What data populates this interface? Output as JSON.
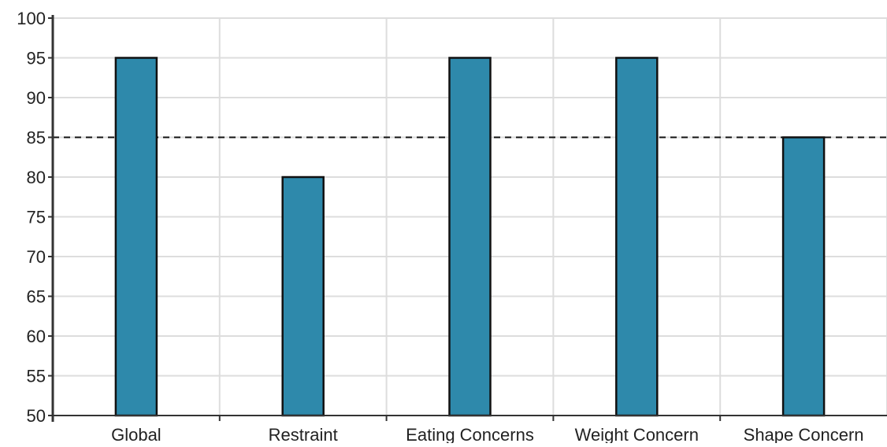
{
  "chart_data": {
    "type": "bar",
    "title": "",
    "xlabel": "",
    "ylabel": "",
    "categories": [
      "Global",
      "Restraint",
      "Eating Concerns",
      "Weight Concern",
      "Shape Concern"
    ],
    "values": [
      95,
      80,
      95,
      95,
      85
    ],
    "ylim": [
      50,
      100
    ],
    "yticks": [
      50,
      55,
      60,
      65,
      70,
      75,
      80,
      85,
      90,
      95,
      100
    ],
    "reference_line": {
      "value": 85,
      "style": "dashed"
    },
    "grid": true,
    "legend": "none",
    "colors": {
      "bar_fill": "#2e89ab",
      "bar_stroke": "#111111",
      "grid": "#dddddd",
      "axis": "#333333",
      "reference_line": "#111111"
    }
  }
}
